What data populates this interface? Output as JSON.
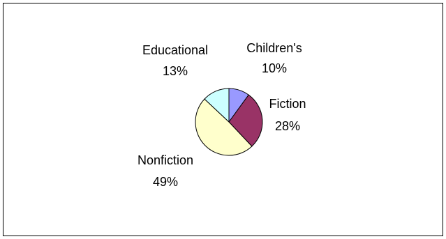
{
  "chart_data": {
    "type": "pie",
    "slices": [
      {
        "label": "Children's",
        "pct_label": "10%",
        "value": 10,
        "color": "#9999ff"
      },
      {
        "label": "Fiction",
        "pct_label": "28%",
        "value": 28,
        "color": "#993366"
      },
      {
        "label": "Nonfiction",
        "pct_label": "49%",
        "value": 49,
        "color": "#ffffcc"
      },
      {
        "label": "Educational",
        "pct_label": "13%",
        "value": 13,
        "color": "#ccffff"
      }
    ]
  }
}
